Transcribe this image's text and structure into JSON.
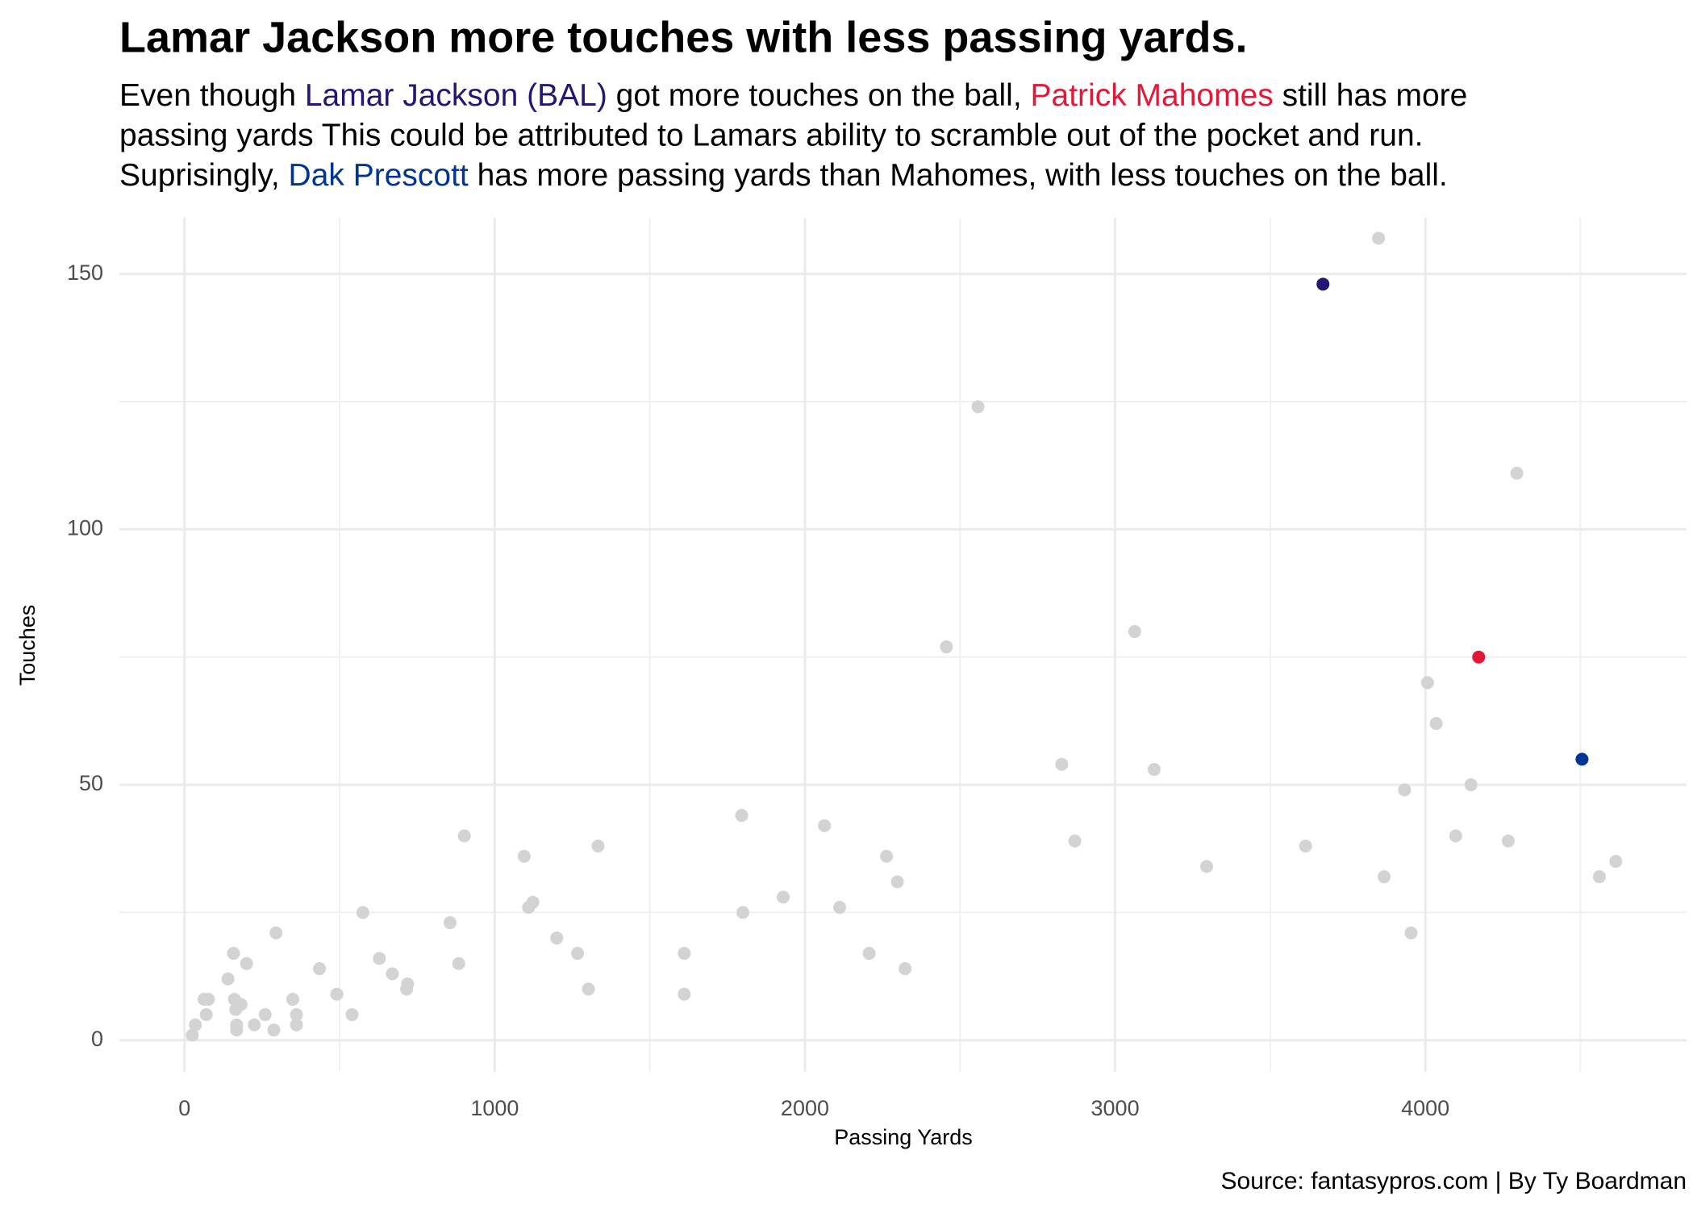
{
  "chart_data": {
    "type": "scatter",
    "title": "Lamar Jackson more touches with less passing yards.",
    "subtitle_lines": [
      [
        {
          "text": "Even though ",
          "color": "#000000"
        },
        {
          "text": "Lamar Jackson (BAL)",
          "color": "#241773"
        },
        {
          "text": " got more touches on the ball, ",
          "color": "#000000"
        },
        {
          "text": "Patrick Mahomes",
          "color": "#e31837"
        },
        {
          "text": " still has more",
          "color": "#000000"
        }
      ],
      [
        {
          "text": "passing yards This could be attributed to Lamars ability to scramble out of the pocket and run.",
          "color": "#000000"
        }
      ],
      [
        {
          "text": "Suprisingly, ",
          "color": "#000000"
        },
        {
          "text": "Dak Prescott",
          "color": "#003594"
        },
        {
          "text": " has more passing yards than Mahomes, with less touches on the ball.",
          "color": "#000000"
        }
      ]
    ],
    "x_label": "Passing Yards",
    "y_label": "Touches",
    "caption": "Source: fantasypros.com | By Ty Boardman",
    "x": [
      3849,
      2558,
      4295,
      2456,
      3063,
      4007,
      4035,
      2828,
      3126,
      4147,
      3933,
      2870,
      3614,
      4098,
      4267,
      3295,
      3867,
      4561,
      4614,
      3954,
      1796,
      2063,
      2263,
      2298,
      1930,
      1800,
      2112,
      2207,
      2323,
      1611,
      1611,
      1333,
      1095,
      1123,
      1109,
      1200,
      1267,
      1302,
      902,
      856,
      884,
      575,
      628,
      670,
      719,
      716,
      435,
      491,
      540,
      295,
      349,
      361,
      361,
      260,
      225,
      288,
      200,
      158,
      140,
      161,
      182,
      165,
      168,
      168,
      63,
      77,
      70,
      35,
      25,
      3670,
      4172,
      4505
    ],
    "y": [
      157,
      124,
      111,
      77,
      80,
      70,
      62,
      54,
      53,
      50,
      49,
      39,
      38,
      40,
      39,
      34,
      32,
      32,
      35,
      21,
      44,
      42,
      36,
      31,
      28,
      25,
      26,
      17,
      14,
      17,
      9,
      38,
      36,
      27,
      26,
      20,
      17,
      10,
      40,
      23,
      15,
      25,
      16,
      13,
      11,
      10,
      14,
      9,
      5,
      21,
      8,
      5,
      3,
      5,
      3,
      2,
      15,
      17,
      12,
      8,
      7,
      6,
      3,
      2,
      8,
      8,
      5,
      3,
      1,
      148,
      75,
      55
    ],
    "colors": [
      "#d3d3d3",
      "#d3d3d3",
      "#d3d3d3",
      "#d3d3d3",
      "#d3d3d3",
      "#d3d3d3",
      "#d3d3d3",
      "#d3d3d3",
      "#d3d3d3",
      "#d3d3d3",
      "#d3d3d3",
      "#d3d3d3",
      "#d3d3d3",
      "#d3d3d3",
      "#d3d3d3",
      "#d3d3d3",
      "#d3d3d3",
      "#d3d3d3",
      "#d3d3d3",
      "#d3d3d3",
      "#d3d3d3",
      "#d3d3d3",
      "#d3d3d3",
      "#d3d3d3",
      "#d3d3d3",
      "#d3d3d3",
      "#d3d3d3",
      "#d3d3d3",
      "#d3d3d3",
      "#d3d3d3",
      "#d3d3d3",
      "#d3d3d3",
      "#d3d3d3",
      "#d3d3d3",
      "#d3d3d3",
      "#d3d3d3",
      "#d3d3d3",
      "#d3d3d3",
      "#d3d3d3",
      "#d3d3d3",
      "#d3d3d3",
      "#d3d3d3",
      "#d3d3d3",
      "#d3d3d3",
      "#d3d3d3",
      "#d3d3d3",
      "#d3d3d3",
      "#d3d3d3",
      "#d3d3d3",
      "#d3d3d3",
      "#d3d3d3",
      "#d3d3d3",
      "#d3d3d3",
      "#d3d3d3",
      "#d3d3d3",
      "#d3d3d3",
      "#d3d3d3",
      "#d3d3d3",
      "#d3d3d3",
      "#d3d3d3",
      "#d3d3d3",
      "#d3d3d3",
      "#d3d3d3",
      "#d3d3d3",
      "#d3d3d3",
      "#d3d3d3",
      "#d3d3d3",
      "#d3d3d3",
      "#d3d3d3",
      "#241773",
      "#e31837",
      "#003594"
    ],
    "xlim": [
      -210,
      4842
    ],
    "ylim": [
      -6.2,
      161
    ],
    "xticks": [
      0,
      1000,
      2000,
      3000,
      4000
    ],
    "yticks": [
      0,
      50,
      100,
      150
    ],
    "xminor": [
      500,
      1500,
      2500,
      3500,
      4500
    ],
    "yminor": [
      25,
      75,
      125
    ],
    "grid": true
  }
}
